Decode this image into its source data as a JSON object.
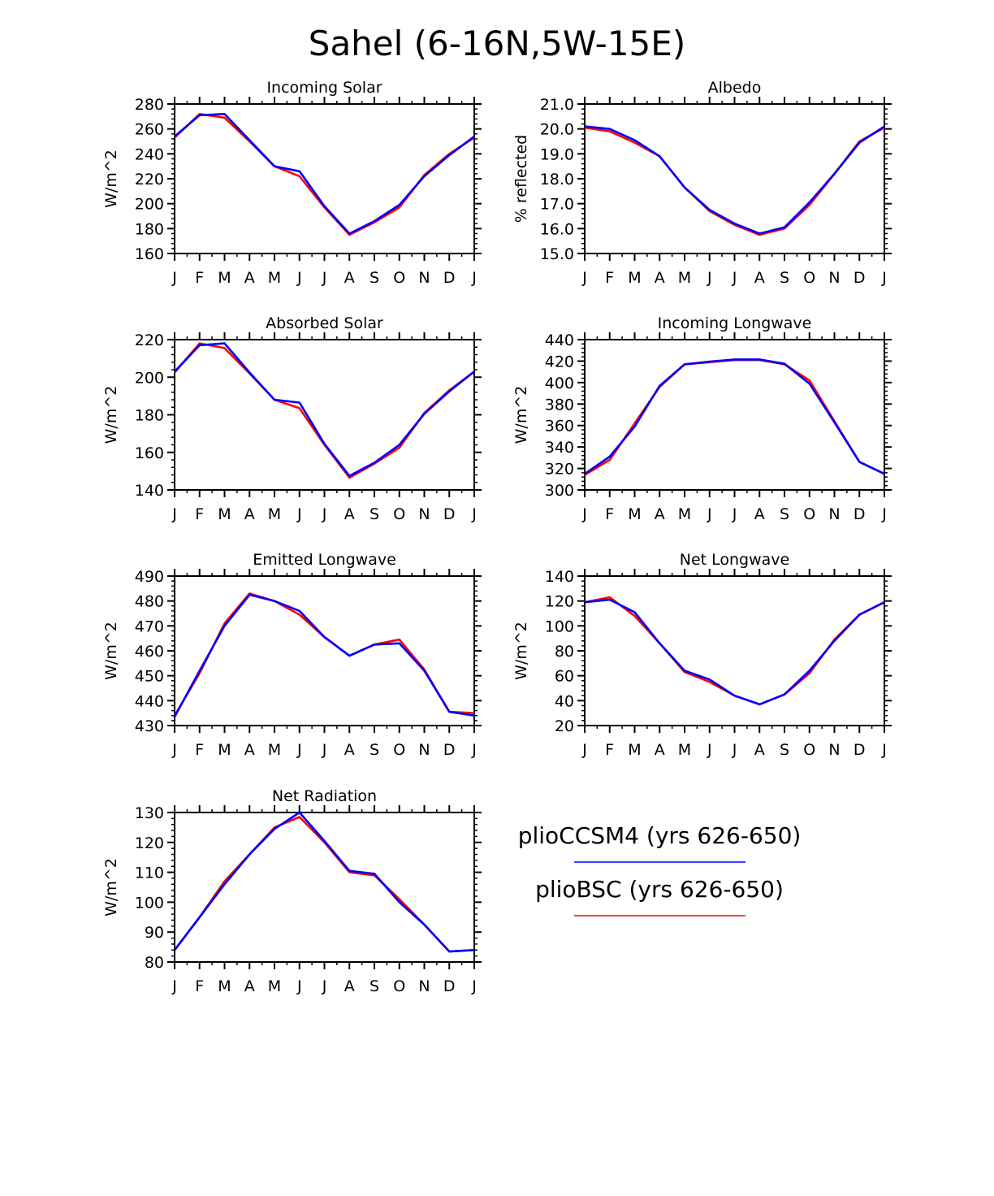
{
  "figure": {
    "title": "Sahel (6-16N,5W-15E)"
  },
  "legend": [
    {
      "label": "plioCCSM4 (yrs 626-650)",
      "color": "#0000ff"
    },
    {
      "label": "plioBSC (yrs 626-650)",
      "color": "#ff0000"
    }
  ],
  "chart_data": [
    {
      "type": "line",
      "title": "Incoming Solar",
      "ylabel": "W/m^2",
      "xlabel": "",
      "categories": [
        "J",
        "F",
        "M",
        "A",
        "M",
        "J",
        "J",
        "A",
        "S",
        "O",
        "N",
        "D",
        "J"
      ],
      "ylim": [
        160,
        280
      ],
      "yticks": [
        160,
        180,
        200,
        220,
        240,
        260,
        280
      ],
      "ytick_labels": [
        "160",
        "180",
        "200",
        "220",
        "240",
        "260",
        "280"
      ],
      "series": [
        {
          "name": "plioBSC (yrs 626-650)",
          "color": "#ff0000",
          "values": [
            253,
            272,
            269,
            250,
            230,
            222,
            197,
            175,
            185,
            197,
            223,
            240,
            253
          ]
        },
        {
          "name": "plioCCSM4 (yrs 626-650)",
          "color": "#0000ff",
          "values": [
            254,
            271,
            272,
            251,
            230,
            226,
            198,
            176,
            186,
            199,
            222,
            239,
            254
          ]
        }
      ]
    },
    {
      "type": "line",
      "title": "Albedo",
      "ylabel": "% reflected",
      "xlabel": "",
      "categories": [
        "J",
        "F",
        "M",
        "A",
        "M",
        "J",
        "J",
        "A",
        "S",
        "O",
        "N",
        "D",
        "J"
      ],
      "ylim": [
        15.0,
        21.0
      ],
      "yticks": [
        15,
        16,
        17,
        18,
        19,
        20,
        21
      ],
      "ytick_labels": [
        "15.0",
        "16.0",
        "17.0",
        "18.0",
        "19.0",
        "20.0",
        "21.0"
      ],
      "series": [
        {
          "name": "plioBSC (yrs 626-650)",
          "color": "#ff0000",
          "values": [
            20.05,
            19.9,
            19.45,
            18.9,
            17.65,
            16.7,
            16.15,
            15.75,
            16.0,
            16.95,
            18.2,
            19.5,
            20.05
          ]
        },
        {
          "name": "plioCCSM4 (yrs 626-650)",
          "color": "#0000ff",
          "values": [
            20.1,
            20.0,
            19.55,
            18.9,
            17.65,
            16.75,
            16.2,
            15.8,
            16.05,
            17.05,
            18.2,
            19.45,
            20.1
          ]
        }
      ]
    },
    {
      "type": "line",
      "title": "Absorbed Solar",
      "ylabel": "W/m^2",
      "xlabel": "",
      "categories": [
        "J",
        "F",
        "M",
        "A",
        "M",
        "J",
        "J",
        "A",
        "S",
        "O",
        "N",
        "D",
        "J"
      ],
      "ylim": [
        140,
        220
      ],
      "yticks": [
        140,
        160,
        180,
        200,
        220
      ],
      "ytick_labels": [
        "140",
        "160",
        "180",
        "200",
        "220"
      ],
      "series": [
        {
          "name": "plioBSC (yrs 626-650)",
          "color": "#ff0000",
          "values": [
            202.5,
            218,
            215.5,
            202,
            188,
            183.5,
            164,
            146.5,
            154,
            162.5,
            181,
            193,
            203
          ]
        },
        {
          "name": "plioCCSM4 (yrs 626-650)",
          "color": "#0000ff",
          "values": [
            203,
            217,
            218,
            202.5,
            188,
            186.5,
            164.5,
            147.5,
            154.5,
            164,
            180.5,
            192.5,
            203
          ]
        }
      ]
    },
    {
      "type": "line",
      "title": "Incoming Longwave",
      "ylabel": "W/m^2",
      "xlabel": "",
      "categories": [
        "J",
        "F",
        "M",
        "A",
        "M",
        "J",
        "J",
        "A",
        "S",
        "O",
        "N",
        "D",
        "J"
      ],
      "ylim": [
        300,
        440
      ],
      "yticks": [
        300,
        320,
        340,
        360,
        380,
        400,
        420,
        440
      ],
      "ytick_labels": [
        "300",
        "320",
        "340",
        "360",
        "380",
        "400",
        "420",
        "440"
      ],
      "series": [
        {
          "name": "plioBSC (yrs 626-650)",
          "color": "#ff0000",
          "values": [
            314,
            328,
            362,
            396,
            417,
            419,
            421,
            421,
            417,
            402,
            364,
            326,
            315
          ]
        },
        {
          "name": "plioCCSM4 (yrs 626-650)",
          "color": "#0000ff",
          "values": [
            315,
            331,
            359,
            397,
            417,
            419.5,
            421.5,
            421.5,
            417.5,
            399,
            363,
            326,
            315
          ]
        }
      ]
    },
    {
      "type": "line",
      "title": "Emitted Longwave",
      "ylabel": "W/m^2",
      "xlabel": "",
      "categories": [
        "J",
        "F",
        "M",
        "A",
        "M",
        "J",
        "J",
        "A",
        "S",
        "O",
        "N",
        "D",
        "J"
      ],
      "ylim": [
        430,
        490
      ],
      "yticks": [
        430,
        440,
        450,
        460,
        470,
        480,
        490
      ],
      "ytick_labels": [
        "430",
        "440",
        "450",
        "460",
        "470",
        "480",
        "490"
      ],
      "series": [
        {
          "name": "plioBSC (yrs 626-650)",
          "color": "#ff0000",
          "values": [
            434,
            451,
            471,
            483,
            480,
            474.5,
            465.5,
            458,
            462.5,
            464.5,
            452.5,
            435.5,
            435
          ]
        },
        {
          "name": "plioCCSM4 (yrs 626-650)",
          "color": "#0000ff",
          "values": [
            433.5,
            452,
            470,
            482.5,
            480,
            476,
            465.5,
            458,
            462.5,
            463,
            452,
            435.5,
            434
          ]
        }
      ]
    },
    {
      "type": "line",
      "title": "Net Longwave",
      "ylabel": "W/m^2",
      "xlabel": "",
      "categories": [
        "J",
        "F",
        "M",
        "A",
        "M",
        "J",
        "J",
        "A",
        "S",
        "O",
        "N",
        "D",
        "J"
      ],
      "ylim": [
        20,
        140
      ],
      "yticks": [
        20,
        40,
        60,
        80,
        100,
        120,
        140
      ],
      "ytick_labels": [
        "20",
        "40",
        "60",
        "80",
        "100",
        "120",
        "140"
      ],
      "series": [
        {
          "name": "plioBSC (yrs 626-650)",
          "color": "#ff0000",
          "values": [
            119,
            123,
            108,
            86,
            63,
            55,
            44,
            37,
            45,
            62,
            89,
            109,
            119
          ]
        },
        {
          "name": "plioCCSM4 (yrs 626-650)",
          "color": "#0000ff",
          "values": [
            119,
            121,
            111,
            86,
            64,
            57,
            44,
            37,
            45,
            64,
            88,
            109,
            119
          ]
        }
      ]
    },
    {
      "type": "line",
      "title": "Net Radiation",
      "ylabel": "W/m^2",
      "xlabel": "",
      "categories": [
        "J",
        "F",
        "M",
        "A",
        "M",
        "J",
        "J",
        "A",
        "S",
        "O",
        "N",
        "D",
        "J"
      ],
      "ylim": [
        80,
        130
      ],
      "yticks": [
        80,
        90,
        100,
        110,
        120,
        130
      ],
      "ytick_labels": [
        "80",
        "90",
        "100",
        "110",
        "120",
        "130"
      ],
      "series": [
        {
          "name": "plioBSC (yrs 626-650)",
          "color": "#ff0000",
          "values": [
            84,
            95,
            107,
            116,
            125,
            128.5,
            120,
            110,
            109,
            101,
            92.5,
            83.5,
            84
          ]
        },
        {
          "name": "plioCCSM4 (yrs 626-650)",
          "color": "#0000ff",
          "values": [
            84,
            95,
            106,
            116,
            124.5,
            130,
            120.5,
            110.5,
            109.5,
            100,
            92.5,
            83.5,
            84
          ]
        }
      ]
    }
  ]
}
